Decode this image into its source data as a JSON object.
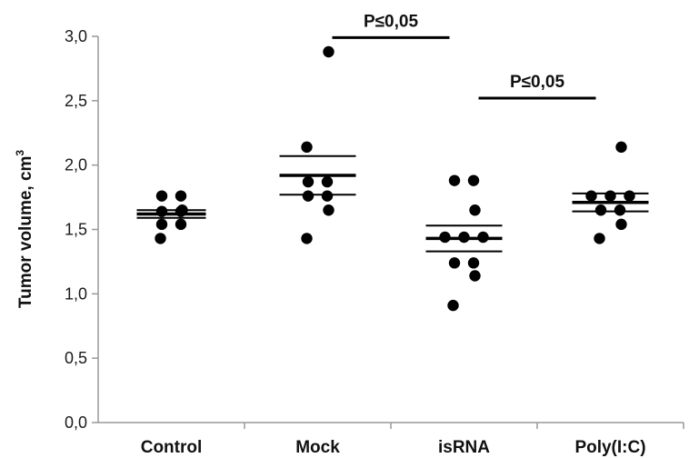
{
  "chart_data": {
    "type": "scatter",
    "subtype": "dot-plot with mean and error bars",
    "title": "",
    "xlabel": "",
    "ylabel": "Tumor volume, cm",
    "ylabel_superscript": "3",
    "ylim": [
      0,
      3.0
    ],
    "yticks": [
      0.0,
      0.5,
      1.0,
      1.5,
      2.0,
      2.5,
      3.0
    ],
    "ytick_labels": [
      "0,0",
      "0,5",
      "1,0",
      "1,5",
      "2,0",
      "2,5",
      "3,0"
    ],
    "categories": [
      "Control",
      "Mock",
      "isRNA",
      "Poly(I:C)"
    ],
    "grid": false,
    "series": [
      {
        "category": "Control",
        "points": [
          1.76,
          1.76,
          1.65,
          1.64,
          1.64,
          1.54,
          1.54,
          1.43
        ],
        "mean": 1.62,
        "upper": 1.65,
        "lower": 1.59
      },
      {
        "category": "Mock",
        "points": [
          2.88,
          2.14,
          1.87,
          1.87,
          1.76,
          1.76,
          1.65,
          1.43
        ],
        "mean": 1.92,
        "upper": 2.07,
        "lower": 1.77
      },
      {
        "category": "isRNA",
        "points": [
          1.88,
          1.88,
          1.65,
          1.44,
          1.44,
          1.44,
          1.24,
          1.24,
          1.14,
          0.91
        ],
        "mean": 1.43,
        "upper": 1.53,
        "lower": 1.33
      },
      {
        "category": "Poly(I:C)",
        "points": [
          2.14,
          1.76,
          1.76,
          1.76,
          1.65,
          1.65,
          1.54,
          1.43
        ],
        "mean": 1.71,
        "upper": 1.78,
        "lower": 1.64
      }
    ],
    "significance": [
      {
        "from": "Mock",
        "to": "isRNA",
        "label": "P≤0,05",
        "y": 2.99
      },
      {
        "from": "isRNA",
        "to": "Poly(I:C)",
        "label": "P≤0,05",
        "y": 2.52
      }
    ],
    "colors": {
      "marker": "#000000",
      "axis": "#999999",
      "line": "#000000"
    }
  }
}
